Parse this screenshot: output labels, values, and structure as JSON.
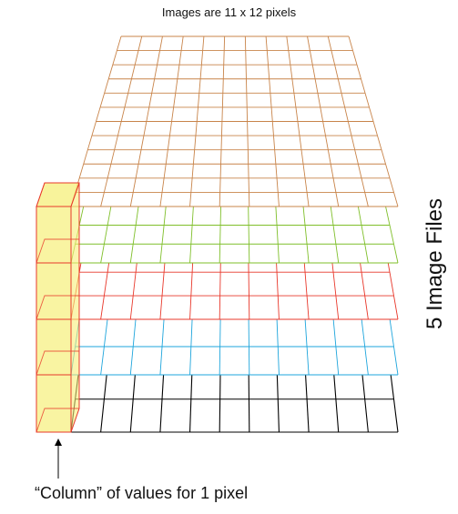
{
  "title": "Images are 11 x 12 pixels",
  "side_label": "5 Image Files",
  "caption": "“Column” of values for 1 pixel",
  "grid": {
    "columns": 11,
    "rows": 12
  },
  "layers": [
    {
      "name": "layer-1-black",
      "color": "#000000"
    },
    {
      "name": "layer-2-blue",
      "color": "#1ea5dc"
    },
    {
      "name": "layer-3-red",
      "color": "#e8382b"
    },
    {
      "name": "layer-4-green",
      "color": "#7fbf2a"
    },
    {
      "name": "layer-5-orange",
      "color": "#c8844a"
    }
  ],
  "highlight": {
    "fill": "#f6ef7a",
    "stroke": "#e8382b"
  },
  "arrow_color": "#000000"
}
